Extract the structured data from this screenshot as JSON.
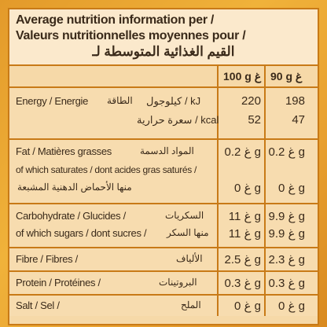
{
  "header": {
    "line1": "Average nutrition information per /",
    "line2": "Valeurs nutritionnelles moyennes  pour /",
    "line3": "القيم الغذائية المتوسطة لـ"
  },
  "columns": {
    "per100": "100 g غ",
    "per90": "90 g غ"
  },
  "energy": {
    "label": "Energy / Energie",
    "arabic": "الطاقة",
    "unit_kj": "كيلوجول / kJ",
    "unit_kcal": "سعرة حرارية / kcal",
    "kj_100": "220",
    "kj_90": "198",
    "kcal_100": "52",
    "kcal_90": "47"
  },
  "fat": {
    "label": "Fat / Matières grasses",
    "arabic": "المواد الدسمة",
    "v100": "0.2 غ g",
    "v90": "0.2 غ g",
    "sat_label": "of which saturates / dont acides gras saturés /",
    "sat_arabic": "منها الأحماض الدهنية المشبعة",
    "sat_v100": "0 غ g",
    "sat_v90": "0 غ g"
  },
  "carb": {
    "label": "Carbohydrate / Glucides /",
    "arabic": "السكريات",
    "v100": "11 غ g",
    "v90": "9.9 غ g",
    "sug_label": "of which sugars / dont sucres /",
    "sug_arabic": "منها السكر",
    "sug_v100": "11 غ g",
    "sug_v90": "9.9 غ g"
  },
  "fibre": {
    "label": "Fibre / Fibres /",
    "arabic": "الألياف",
    "v100": "2.5 غ g",
    "v90": "2.3 غ g"
  },
  "protein": {
    "label": "Protein / Protéines /",
    "arabic": "البروتينات",
    "v100": "0.3 غ g",
    "v90": "0.3 غ g"
  },
  "salt": {
    "label": "Salt / Sel /",
    "arabic": "الملح",
    "v100": "0 غ g",
    "v90": "0 غ g"
  }
}
